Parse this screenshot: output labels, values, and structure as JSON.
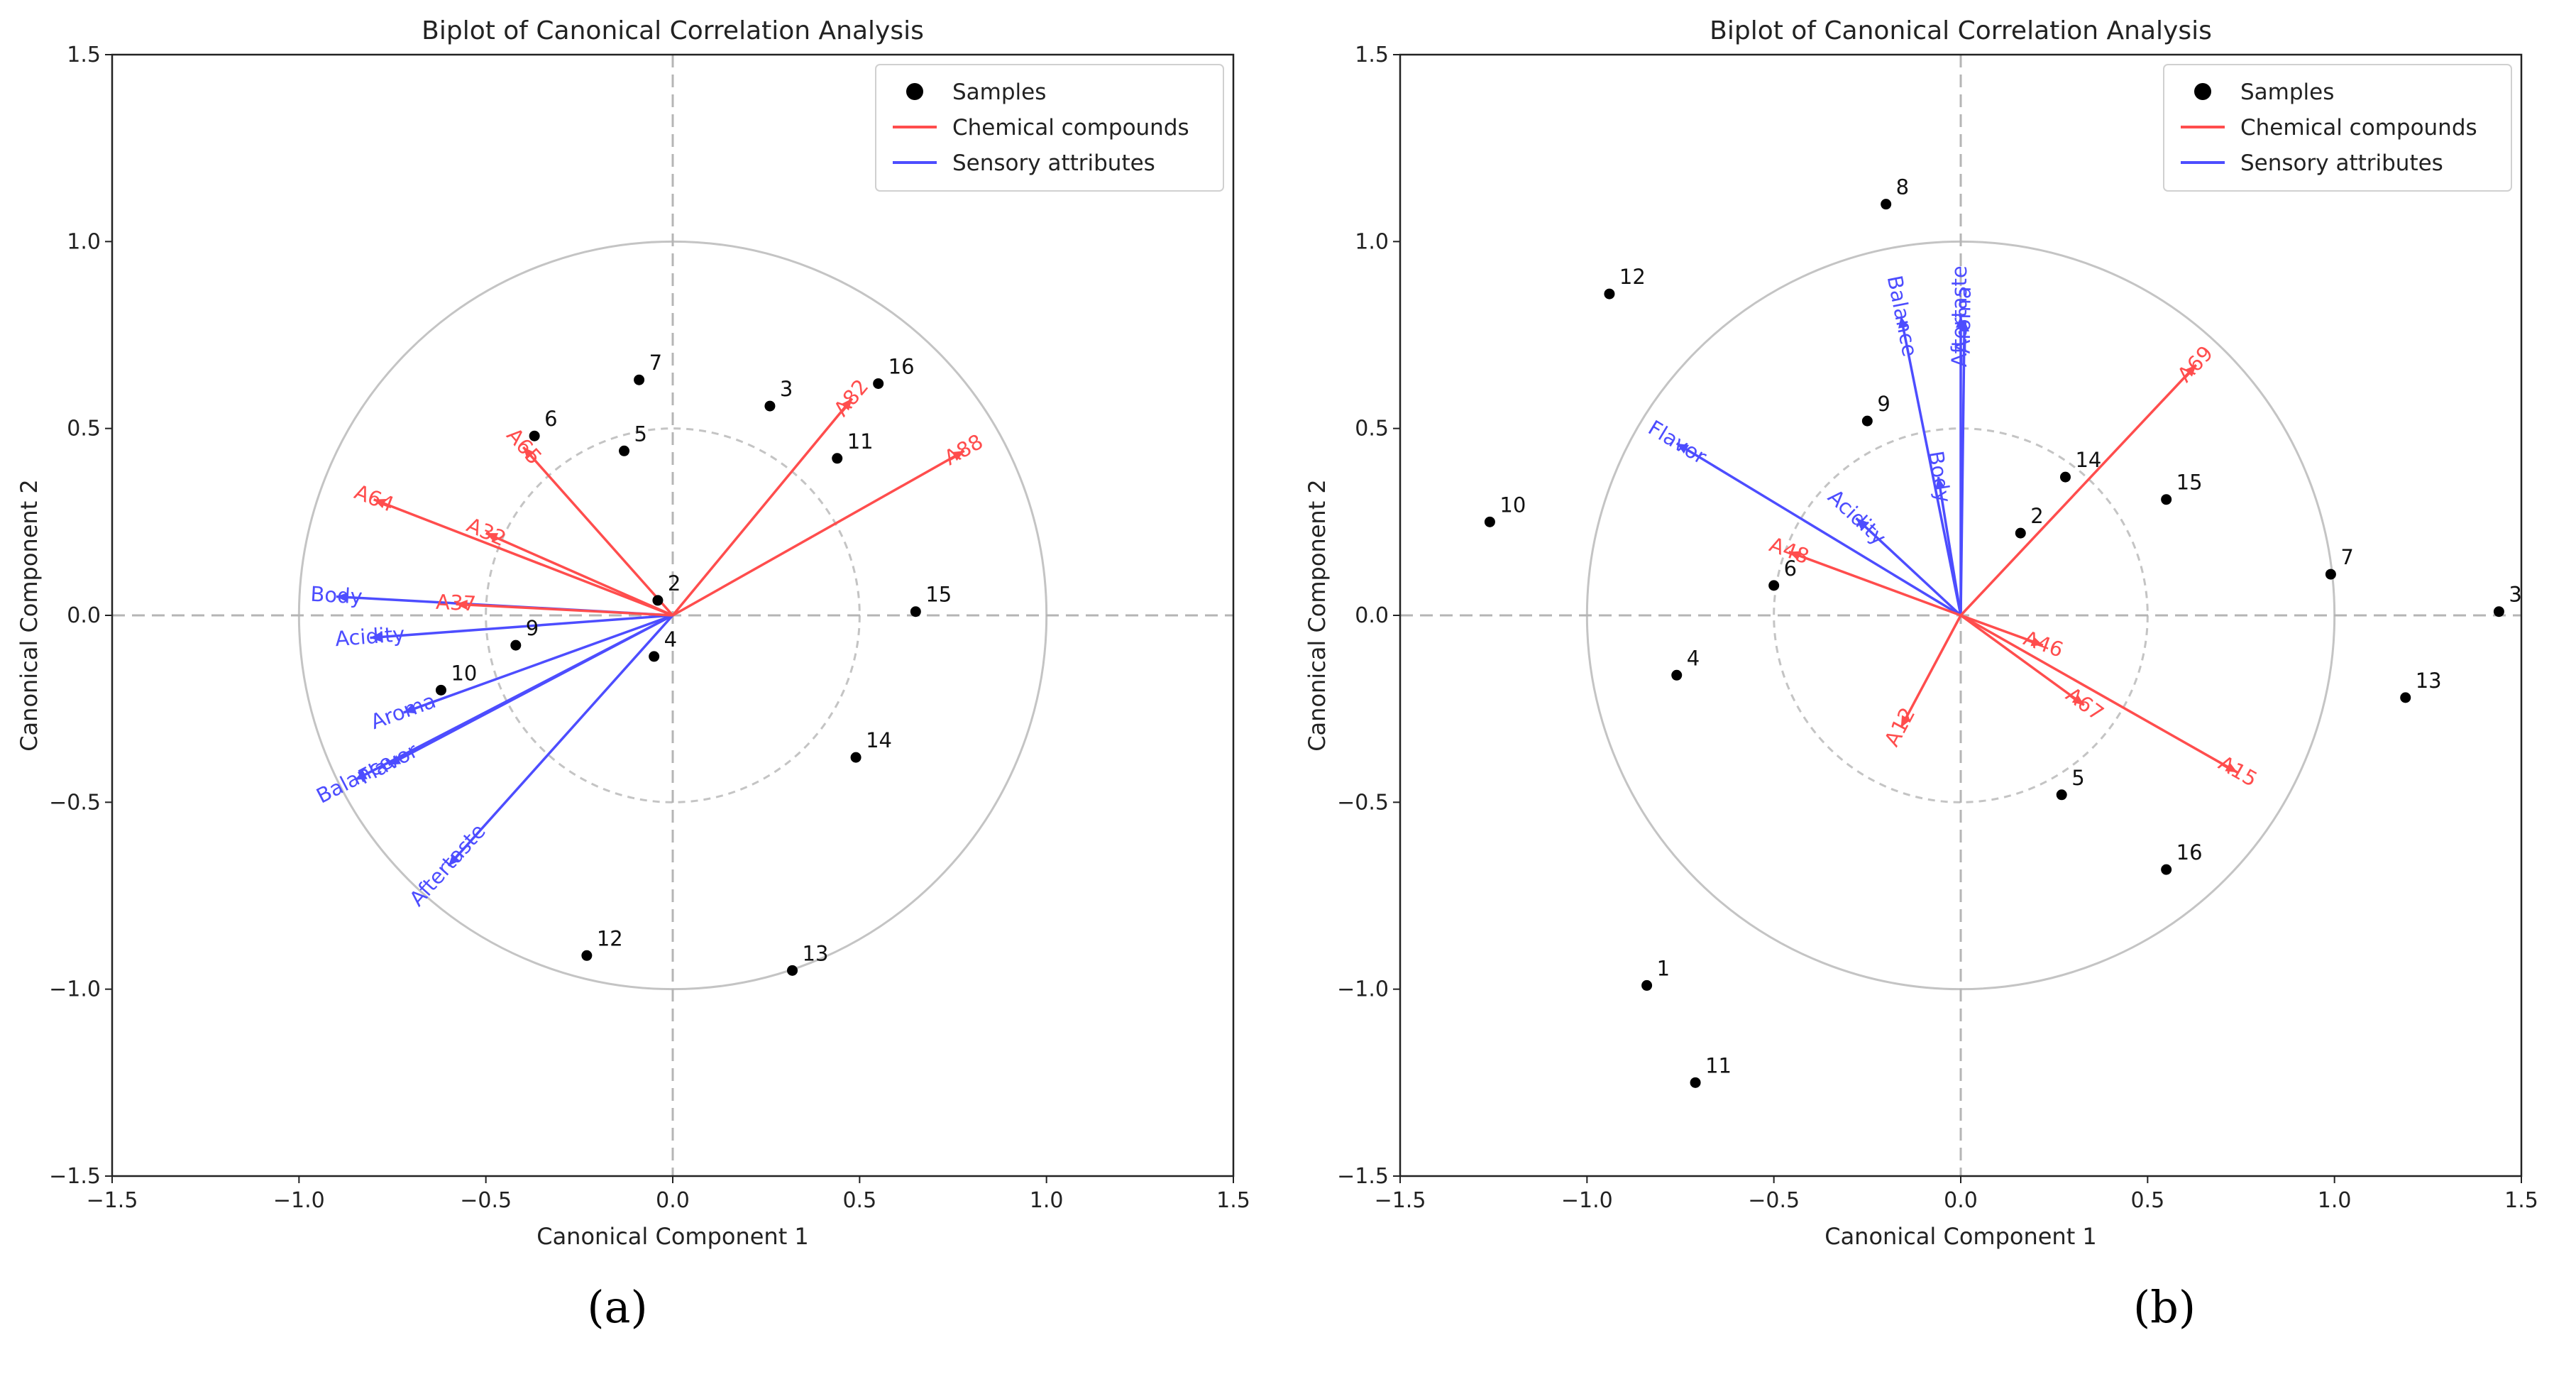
{
  "panel_labels": [
    "(a)",
    "(b)"
  ],
  "chart_data": [
    {
      "type": "scatter",
      "title": "Biplot of Canonical Correlation Analysis",
      "xlabel": "Canonical Component 1",
      "ylabel": "Canonical Component 2",
      "xlim": [
        -1.5,
        1.5
      ],
      "ylim": [
        -1.5,
        1.5
      ],
      "xticks": [
        "−1.5",
        "−1.0",
        "−0.5",
        "0.0",
        "0.5",
        "1.0",
        "1.5"
      ],
      "yticks": [
        "−1.5",
        "−1.0",
        "−0.5",
        "0.0",
        "0.5",
        "1.0",
        "1.5"
      ],
      "tick_values": [
        -1.5,
        -1.0,
        -0.5,
        0.0,
        0.5,
        1.0,
        1.5
      ],
      "circles": [
        1.0,
        0.5
      ],
      "legend": {
        "location": "top-right",
        "entries": [
          {
            "label": "Samples",
            "color": "#000000",
            "kind": "marker"
          },
          {
            "label": "Chemical compounds",
            "color": "#ff4d4d",
            "kind": "line"
          },
          {
            "label": "Sensory attributes",
            "color": "#4d4dff",
            "kind": "line"
          }
        ]
      },
      "colors": {
        "chemical": "#ff4d4d",
        "sensory": "#4d4dff",
        "sample": "#000000"
      },
      "samples": [
        {
          "label": "2",
          "x": -0.04,
          "y": 0.04
        },
        {
          "label": "3",
          "x": 0.26,
          "y": 0.56
        },
        {
          "label": "4",
          "x": -0.05,
          "y": -0.11
        },
        {
          "label": "5",
          "x": -0.13,
          "y": 0.44
        },
        {
          "label": "6",
          "x": -0.37,
          "y": 0.48
        },
        {
          "label": "7",
          "x": -0.09,
          "y": 0.63
        },
        {
          "label": "9",
          "x": -0.42,
          "y": -0.08
        },
        {
          "label": "10",
          "x": -0.62,
          "y": -0.2
        },
        {
          "label": "11",
          "x": 0.44,
          "y": 0.42
        },
        {
          "label": "12",
          "x": -0.23,
          "y": -0.91
        },
        {
          "label": "13",
          "x": 0.32,
          "y": -0.95
        },
        {
          "label": "14",
          "x": 0.49,
          "y": -0.38
        },
        {
          "label": "15",
          "x": 0.65,
          "y": 0.01
        },
        {
          "label": "16",
          "x": 0.55,
          "y": 0.62
        }
      ],
      "chemical_vectors": [
        {
          "label": "A65",
          "x": -0.4,
          "y": 0.45
        },
        {
          "label": "A64",
          "x": -0.8,
          "y": 0.31
        },
        {
          "label": "A32",
          "x": -0.5,
          "y": 0.22
        },
        {
          "label": "A37",
          "x": -0.58,
          "y": 0.03
        },
        {
          "label": "A82",
          "x": 0.48,
          "y": 0.58
        },
        {
          "label": "A88",
          "x": 0.78,
          "y": 0.44
        }
      ],
      "sensory_vectors": [
        {
          "label": "Body",
          "x": -0.9,
          "y": 0.05
        },
        {
          "label": "Acidity",
          "x": -0.81,
          "y": -0.06
        },
        {
          "label": "Aroma",
          "x": -0.72,
          "y": -0.26
        },
        {
          "label": "Flavor",
          "x": -0.76,
          "y": -0.4
        },
        {
          "label": "Balance",
          "x": -0.85,
          "y": -0.44
        },
        {
          "label": "Aftertaste",
          "x": -0.6,
          "y": -0.67
        }
      ]
    },
    {
      "type": "scatter",
      "title": "Biplot of Canonical Correlation Analysis",
      "xlabel": "Canonical Component 1",
      "ylabel": "Canonical Component 2",
      "xlim": [
        -1.5,
        1.5
      ],
      "ylim": [
        -1.5,
        1.5
      ],
      "xticks": [
        "−1.5",
        "−1.0",
        "−0.5",
        "0.0",
        "0.5",
        "1.0",
        "1.5"
      ],
      "yticks": [
        "−1.5",
        "−1.0",
        "−0.5",
        "0.0",
        "0.5",
        "1.0",
        "1.5"
      ],
      "tick_values": [
        -1.5,
        -1.0,
        -0.5,
        0.0,
        0.5,
        1.0,
        1.5
      ],
      "circles": [
        1.0,
        0.5
      ],
      "legend": {
        "location": "top-right",
        "entries": [
          {
            "label": "Samples",
            "color": "#000000",
            "kind": "marker"
          },
          {
            "label": "Chemical compounds",
            "color": "#ff4d4d",
            "kind": "line"
          },
          {
            "label": "Sensory attributes",
            "color": "#4d4dff",
            "kind": "line"
          }
        ]
      },
      "colors": {
        "chemical": "#ff4d4d",
        "sensory": "#4d4dff",
        "sample": "#000000"
      },
      "samples": [
        {
          "label": "1",
          "x": -0.84,
          "y": -0.99
        },
        {
          "label": "2",
          "x": 0.16,
          "y": 0.22
        },
        {
          "label": "3",
          "x": 1.44,
          "y": 0.01
        },
        {
          "label": "4",
          "x": -0.76,
          "y": -0.16
        },
        {
          "label": "5",
          "x": 0.27,
          "y": -0.48
        },
        {
          "label": "6",
          "x": -0.5,
          "y": 0.08
        },
        {
          "label": "7",
          "x": 0.99,
          "y": 0.11
        },
        {
          "label": "8",
          "x": -0.2,
          "y": 1.1
        },
        {
          "label": "9",
          "x": -0.25,
          "y": 0.52
        },
        {
          "label": "10",
          "x": -1.26,
          "y": 0.25
        },
        {
          "label": "11",
          "x": -0.71,
          "y": -1.25
        },
        {
          "label": "12",
          "x": -0.94,
          "y": 0.86
        },
        {
          "label": "13",
          "x": 1.19,
          "y": -0.22
        },
        {
          "label": "14",
          "x": 0.28,
          "y": 0.37
        },
        {
          "label": "15",
          "x": 0.55,
          "y": 0.31
        },
        {
          "label": "16",
          "x": 0.55,
          "y": -0.68
        }
      ],
      "chemical_vectors": [
        {
          "label": "A69",
          "x": 0.63,
          "y": 0.67
        },
        {
          "label": "A48",
          "x": -0.46,
          "y": 0.17
        },
        {
          "label": "A46",
          "x": 0.22,
          "y": -0.08
        },
        {
          "label": "A67",
          "x": 0.33,
          "y": -0.24
        },
        {
          "label": "A15",
          "x": 0.74,
          "y": -0.42
        },
        {
          "label": "A12",
          "x": -0.16,
          "y": -0.3
        }
      ],
      "sensory_vectors": [
        {
          "label": "Flavor",
          "x": -0.76,
          "y": 0.46
        },
        {
          "label": "Acidity",
          "x": -0.28,
          "y": 0.26
        },
        {
          "label": "Body",
          "x": -0.06,
          "y": 0.37
        },
        {
          "label": "Balance",
          "x": -0.16,
          "y": 0.8
        },
        {
          "label": "Aftertaste",
          "x": 0.0,
          "y": 0.8
        },
        {
          "label": "Aroma",
          "x": 0.01,
          "y": 0.79
        }
      ]
    }
  ]
}
